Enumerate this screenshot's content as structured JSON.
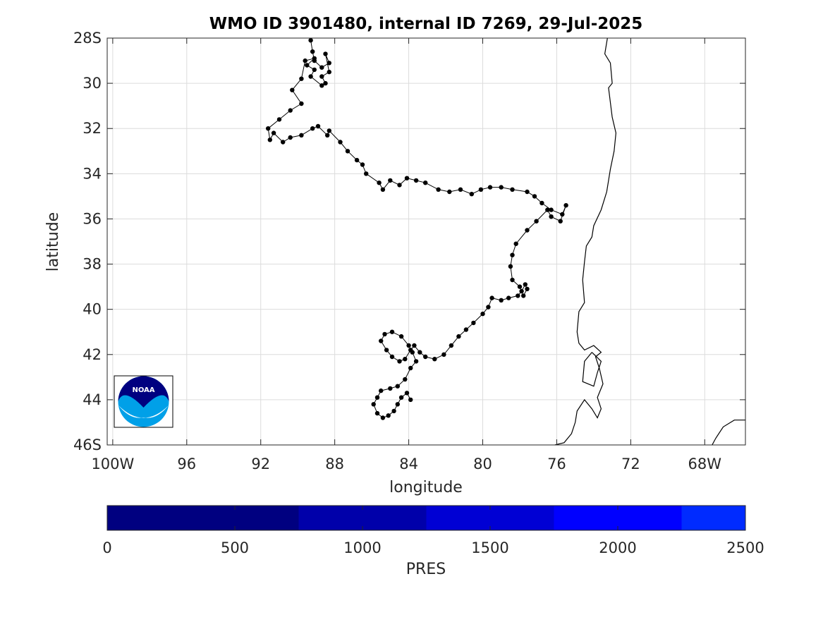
{
  "chart_data": {
    "type": "scatter",
    "title": "WMO ID 3901480, internal ID 7269, 29-Jul-2025",
    "xlabel": "longitude",
    "ylabel": "latitude",
    "xlim": [
      -100.3,
      -65.8
    ],
    "ylim": [
      -46,
      -28
    ],
    "xticks": [
      {
        "value": -100,
        "label": "100W"
      },
      {
        "value": -96,
        "label": "96"
      },
      {
        "value": -92,
        "label": "92"
      },
      {
        "value": -88,
        "label": "88"
      },
      {
        "value": -84,
        "label": "84"
      },
      {
        "value": -80,
        "label": "80"
      },
      {
        "value": -76,
        "label": "76"
      },
      {
        "value": -72,
        "label": "72"
      },
      {
        "value": -68,
        "label": "68W"
      }
    ],
    "yticks": [
      {
        "value": -28,
        "label": "28S"
      },
      {
        "value": -30,
        "label": "30"
      },
      {
        "value": -32,
        "label": "32"
      },
      {
        "value": -34,
        "label": "34"
      },
      {
        "value": -36,
        "label": "36"
      },
      {
        "value": -38,
        "label": "38"
      },
      {
        "value": -40,
        "label": "40"
      },
      {
        "value": -42,
        "label": "42"
      },
      {
        "value": -44,
        "label": "44"
      },
      {
        "value": -46,
        "label": "46S"
      }
    ],
    "grid": true,
    "marker_color": "#000000",
    "track": {
      "lon": [
        -89.3,
        -89.2,
        -89.1,
        -88.7,
        -88.3,
        -88.5,
        -88.3,
        -88.7,
        -88.5,
        -88.7,
        -89.3,
        -89.1,
        -89.5,
        -89.1,
        -89.6,
        -89.8,
        -90.3,
        -89.8,
        -90.4,
        -91.0,
        -91.6,
        -91.5,
        -91.3,
        -90.8,
        -90.4,
        -89.8,
        -89.2,
        -88.9,
        -88.4,
        -88.3,
        -87.7,
        -87.3,
        -86.8,
        -86.5,
        -86.3,
        -85.6,
        -85.4,
        -85.0,
        -84.5,
        -84.1,
        -83.6,
        -83.1,
        -82.4,
        -81.8,
        -81.2,
        -80.6,
        -80.1,
        -79.6,
        -79.0,
        -78.4,
        -77.6,
        -77.2,
        -76.8,
        -76.3,
        -75.7,
        -75.5,
        -75.8,
        -76.3,
        -76.5,
        -77.1,
        -77.6,
        -78.2,
        -78.4,
        -78.5,
        -78.4,
        -78.0,
        -77.8,
        -77.6,
        -77.7,
        -77.9,
        -78.1,
        -78.6,
        -79.0,
        -79.5,
        -79.7,
        -80.0,
        -80.5,
        -80.9,
        -81.3,
        -81.7,
        -82.1,
        -82.6,
        -83.1,
        -83.4,
        -83.7,
        -83.9,
        -84.2,
        -84.5,
        -84.9,
        -85.2,
        -85.5,
        -85.3,
        -84.9,
        -84.4,
        -84.0,
        -83.8,
        -83.6,
        -83.9,
        -84.2,
        -84.6,
        -85.0,
        -85.5,
        -85.7,
        -85.9,
        -85.7,
        -85.4,
        -85.1,
        -84.8,
        -84.6,
        -84.4,
        -84.1,
        -83.9
      ],
      "lat": [
        -28.1,
        -28.6,
        -29.0,
        -29.3,
        -29.1,
        -28.7,
        -29.5,
        -29.7,
        -30.0,
        -30.1,
        -29.7,
        -29.4,
        -29.2,
        -28.9,
        -29.0,
        -29.8,
        -30.3,
        -30.9,
        -31.2,
        -31.6,
        -32.0,
        -32.5,
        -32.2,
        -32.6,
        -32.4,
        -32.3,
        -32.0,
        -31.9,
        -32.3,
        -32.1,
        -32.6,
        -33.0,
        -33.4,
        -33.6,
        -34.0,
        -34.4,
        -34.7,
        -34.3,
        -34.5,
        -34.2,
        -34.3,
        -34.4,
        -34.7,
        -34.8,
        -34.7,
        -34.9,
        -34.7,
        -34.6,
        -34.6,
        -34.7,
        -34.8,
        -35.0,
        -35.3,
        -35.6,
        -35.8,
        -35.4,
        -36.1,
        -35.9,
        -35.6,
        -36.1,
        -36.5,
        -37.1,
        -37.6,
        -38.1,
        -38.7,
        -39.0,
        -39.4,
        -39.1,
        -38.9,
        -39.2,
        -39.4,
        -39.5,
        -39.6,
        -39.5,
        -39.9,
        -40.2,
        -40.6,
        -40.9,
        -41.2,
        -41.6,
        -42.0,
        -42.2,
        -42.1,
        -41.9,
        -41.6,
        -41.8,
        -42.2,
        -42.3,
        -42.1,
        -41.8,
        -41.4,
        -41.1,
        -41.0,
        -41.2,
        -41.6,
        -41.9,
        -42.3,
        -42.6,
        -43.1,
        -43.4,
        -43.5,
        -43.6,
        -43.9,
        -44.2,
        -44.6,
        -44.8,
        -44.7,
        -44.5,
        -44.2,
        -43.9,
        -43.7,
        -44.0
      ]
    },
    "coastline": [
      [
        [
          -73.2,
          -27.7
        ],
        [
          -73.4,
          -28.7
        ],
        [
          -73.1,
          -29.1
        ],
        [
          -73.0,
          -30.0
        ],
        [
          -73.2,
          -30.2
        ],
        [
          -73.0,
          -31.5
        ],
        [
          -72.8,
          -32.2
        ],
        [
          -72.9,
          -33.0
        ],
        [
          -73.1,
          -33.8
        ],
        [
          -73.3,
          -34.8
        ],
        [
          -73.6,
          -35.6
        ],
        [
          -74.0,
          -36.3
        ],
        [
          -74.1,
          -36.8
        ],
        [
          -74.4,
          -37.2
        ],
        [
          -74.5,
          -37.9
        ],
        [
          -74.6,
          -38.7
        ],
        [
          -74.5,
          -39.7
        ],
        [
          -74.8,
          -40.1
        ],
        [
          -74.9,
          -41.0
        ],
        [
          -74.8,
          -41.5
        ],
        [
          -74.5,
          -41.8
        ],
        [
          -74.0,
          -41.6
        ],
        [
          -73.6,
          -41.9
        ],
        [
          -73.9,
          -42.1
        ],
        [
          -73.7,
          -42.6
        ],
        [
          -73.5,
          -43.3
        ],
        [
          -73.8,
          -43.9
        ],
        [
          -73.6,
          -44.4
        ],
        [
          -73.8,
          -44.8
        ],
        [
          -74.1,
          -44.4
        ],
        [
          -74.5,
          -44.0
        ],
        [
          -74.9,
          -44.5
        ],
        [
          -75.0,
          -45.0
        ],
        [
          -75.2,
          -45.5
        ],
        [
          -75.6,
          -45.9
        ],
        [
          -76.1,
          -46.0
        ]
      ],
      [
        [
          -74.1,
          -41.9
        ],
        [
          -73.6,
          -42.3
        ],
        [
          -73.8,
          -42.8
        ],
        [
          -74.0,
          -43.4
        ],
        [
          -74.6,
          -43.2
        ],
        [
          -74.5,
          -42.3
        ],
        [
          -74.1,
          -41.9
        ]
      ],
      [
        [
          -65.8,
          -44.9
        ],
        [
          -66.4,
          -44.9
        ],
        [
          -67.0,
          -45.2
        ],
        [
          -67.4,
          -45.7
        ],
        [
          -67.6,
          -46.0
        ]
      ]
    ],
    "colorbar": {
      "label": "PRES",
      "range": [
        0,
        2500
      ],
      "ticks": [
        0,
        500,
        1000,
        1500,
        2000,
        2500
      ],
      "segments": [
        {
          "from": 0,
          "to": 750,
          "color": "#000080"
        },
        {
          "from": 750,
          "to": 1250,
          "color": "#0000aa"
        },
        {
          "from": 1250,
          "to": 1750,
          "color": "#0000d4"
        },
        {
          "from": 1750,
          "to": 2250,
          "color": "#0000ff"
        },
        {
          "from": 2250,
          "to": 2500,
          "color": "#002bff"
        }
      ]
    },
    "logo": {
      "text": "NOAA",
      "colors": {
        "dark": "#000080",
        "light": "#00a0e8"
      }
    }
  }
}
